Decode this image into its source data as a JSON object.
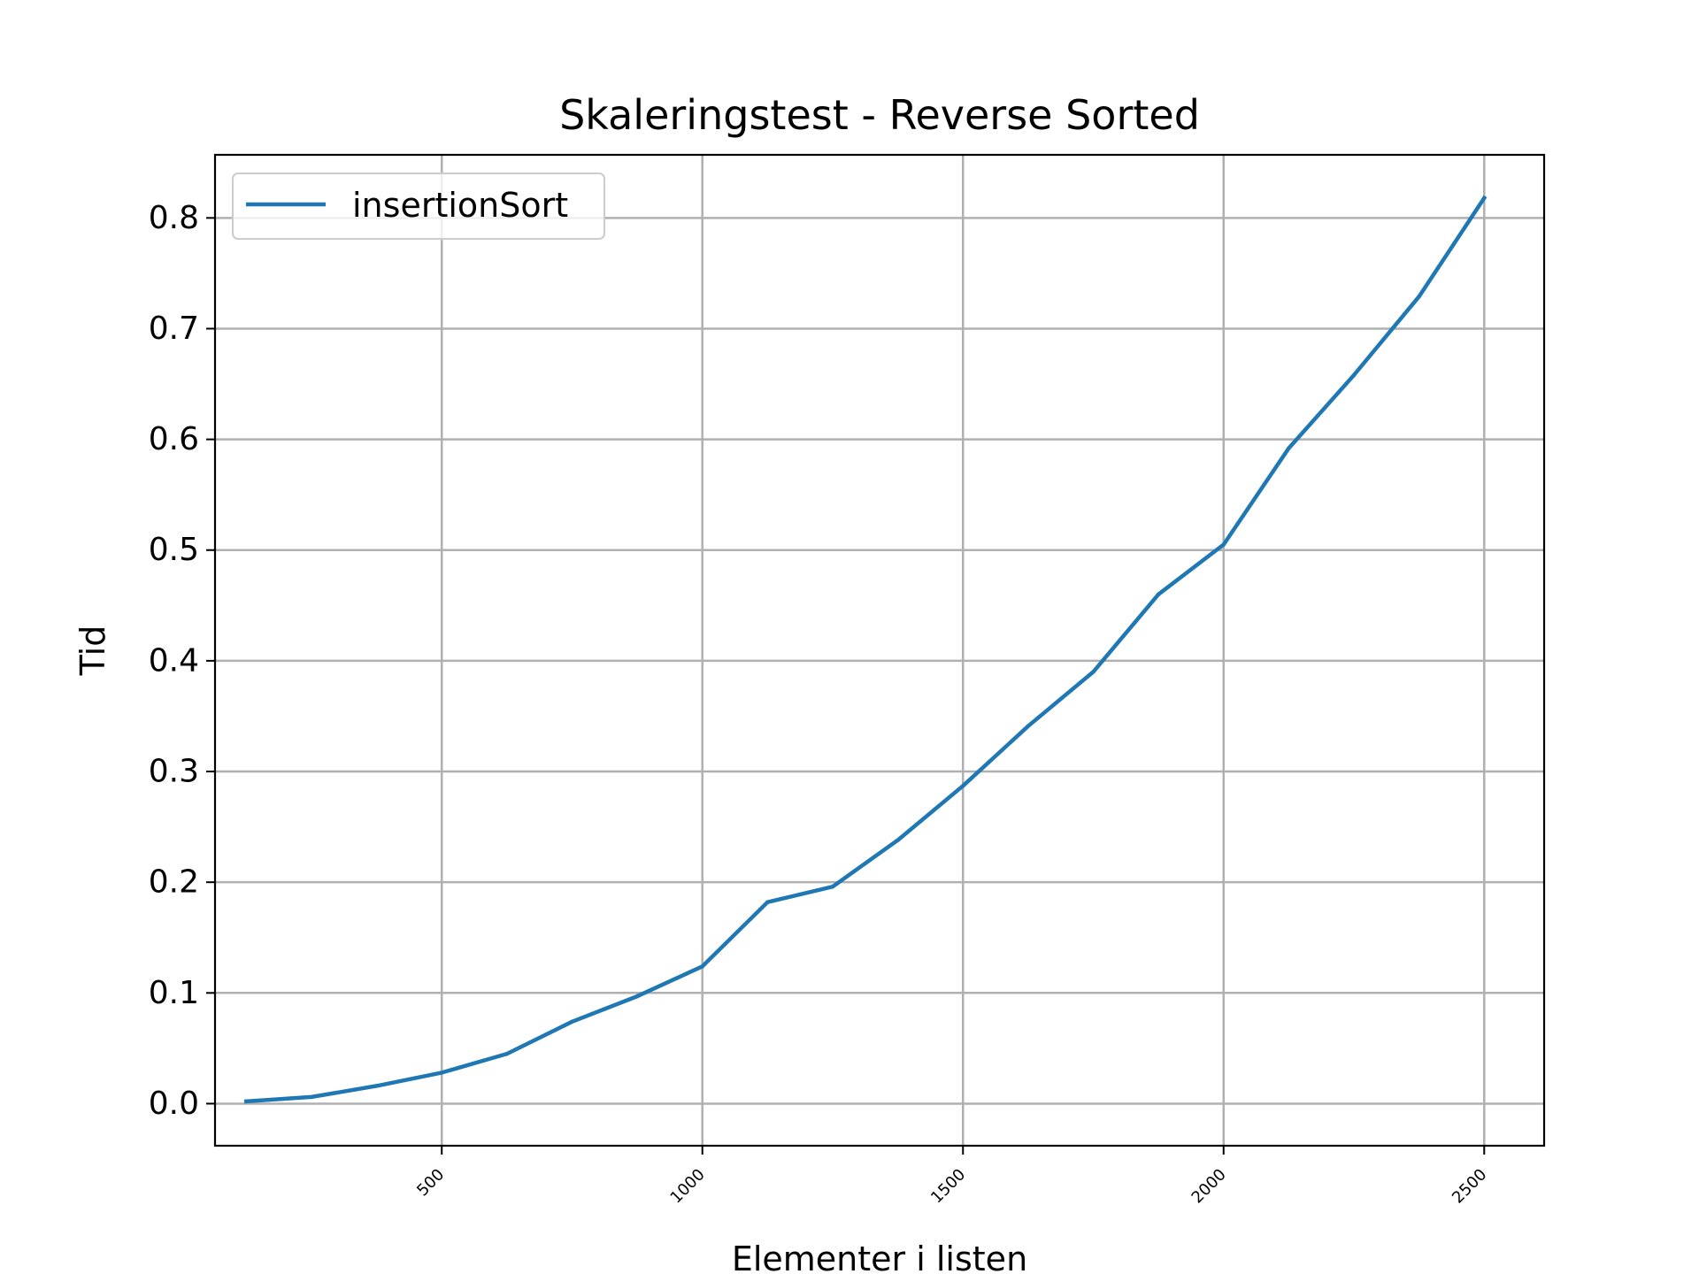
{
  "chart_data": {
    "type": "line",
    "title": "Skaleringstest - Reverse Sorted",
    "xlabel": "Elementer i listen",
    "ylabel": "Tid",
    "xlim": [
      65,
      2615
    ],
    "ylim": [
      -0.038,
      0.857
    ],
    "xticks": [
      500,
      1000,
      1500,
      2000,
      2500
    ],
    "xtick_labels": [
      "500",
      "1000",
      "1500",
      "2000",
      "2500"
    ],
    "yticks": [
      0.0,
      0.1,
      0.2,
      0.3,
      0.4,
      0.5,
      0.6,
      0.7,
      0.8
    ],
    "ytick_labels": [
      "0.0",
      "0.1",
      "0.2",
      "0.3",
      "0.4",
      "0.5",
      "0.6",
      "0.7",
      "0.8"
    ],
    "grid": true,
    "legend_position": "top-left",
    "colors": {
      "series": "#1f77b4",
      "grid": "#b0b0b0",
      "frame": "#000000"
    },
    "series": [
      {
        "name": "insertionSort",
        "x": [
          125,
          250,
          375,
          500,
          625,
          750,
          875,
          1000,
          1125,
          1250,
          1375,
          1500,
          1625,
          1750,
          1875,
          2000,
          2125,
          2250,
          2375,
          2500
        ],
        "y": [
          0.002,
          0.006,
          0.016,
          0.028,
          0.045,
          0.074,
          0.097,
          0.124,
          0.182,
          0.196,
          0.238,
          0.287,
          0.341,
          0.39,
          0.46,
          0.505,
          0.592,
          0.658,
          0.729,
          0.818
        ]
      }
    ]
  }
}
